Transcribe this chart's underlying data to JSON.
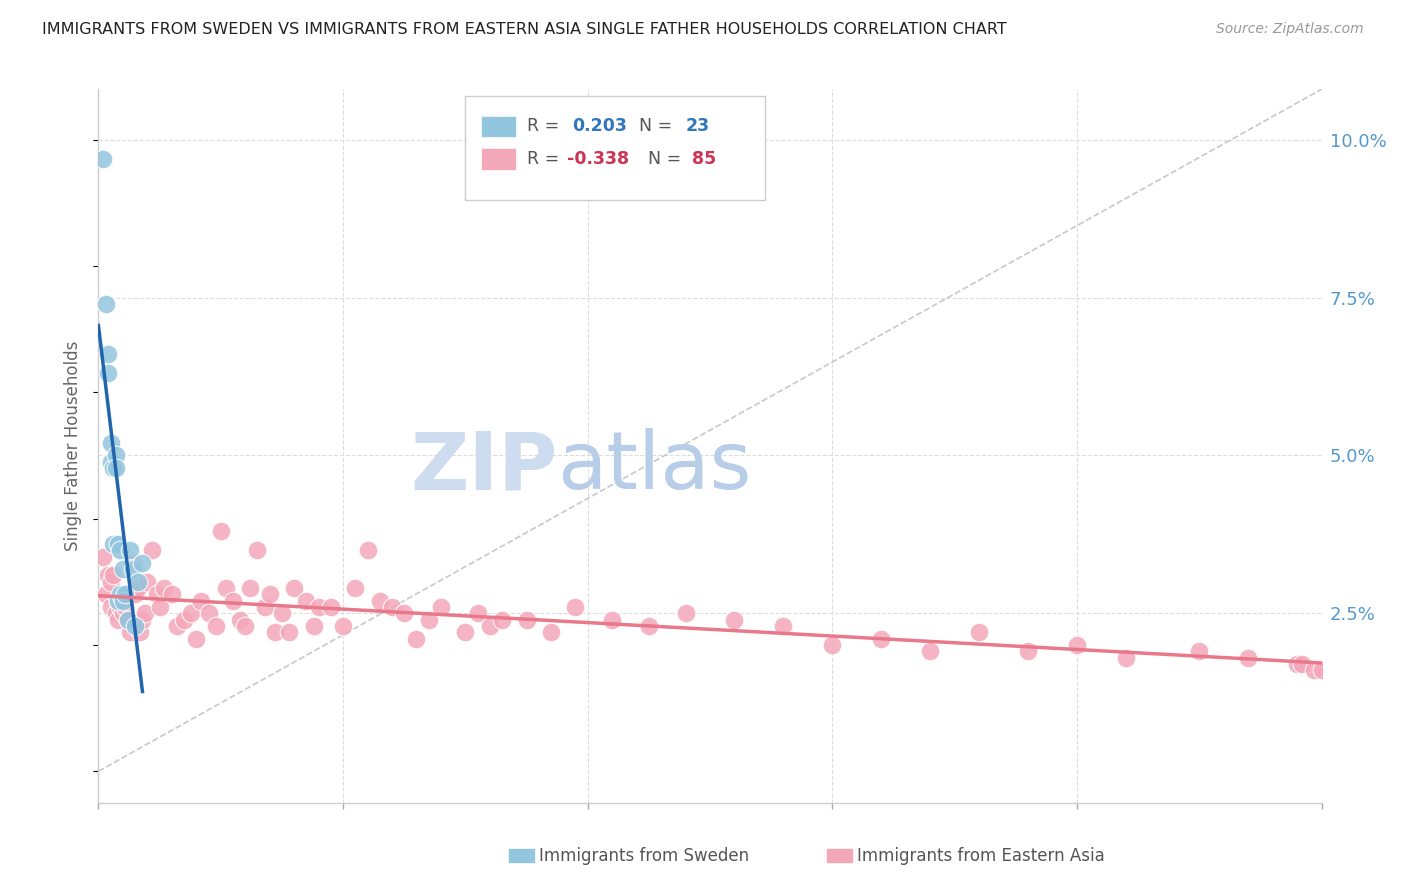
{
  "title": "IMMIGRANTS FROM SWEDEN VS IMMIGRANTS FROM EASTERN ASIA SINGLE FATHER HOUSEHOLDS CORRELATION CHART",
  "source": "Source: ZipAtlas.com",
  "ylabel": "Single Father Households",
  "ytick_labels": [
    "2.5%",
    "5.0%",
    "7.5%",
    "10.0%"
  ],
  "ytick_values": [
    0.025,
    0.05,
    0.075,
    0.1
  ],
  "xmin": 0.0,
  "xmax": 0.5,
  "ymin": -0.005,
  "ymax": 0.108,
  "sweden_color": "#92c5de",
  "eastern_asia_color": "#f4a7b9",
  "sweden_line_color": "#2166ac",
  "eastern_asia_line_color": "#e8788a",
  "dashed_line_color": "#bbbbbb",
  "background_color": "#ffffff",
  "grid_color": "#dddddd",
  "title_color": "#333333",
  "axis_label_color": "#5599cc",
  "watermark_zip_color": "#c8d8f0",
  "watermark_atlas_color": "#b0c8e8",
  "sweden_points_x": [
    0.002,
    0.003,
    0.004,
    0.004,
    0.005,
    0.005,
    0.006,
    0.006,
    0.007,
    0.007,
    0.008,
    0.008,
    0.009,
    0.009,
    0.01,
    0.01,
    0.011,
    0.012,
    0.013,
    0.014,
    0.015,
    0.016,
    0.018
  ],
  "sweden_points_y": [
    0.097,
    0.074,
    0.066,
    0.063,
    0.052,
    0.049,
    0.048,
    0.036,
    0.05,
    0.048,
    0.036,
    0.027,
    0.035,
    0.028,
    0.032,
    0.027,
    0.028,
    0.024,
    0.035,
    0.032,
    0.023,
    0.03,
    0.033
  ],
  "eastern_asia_points_x": [
    0.002,
    0.003,
    0.004,
    0.005,
    0.005,
    0.006,
    0.007,
    0.008,
    0.008,
    0.009,
    0.01,
    0.01,
    0.011,
    0.012,
    0.013,
    0.014,
    0.015,
    0.016,
    0.017,
    0.018,
    0.019,
    0.02,
    0.022,
    0.024,
    0.025,
    0.027,
    0.03,
    0.032,
    0.035,
    0.038,
    0.04,
    0.042,
    0.045,
    0.048,
    0.05,
    0.052,
    0.055,
    0.058,
    0.06,
    0.062,
    0.065,
    0.068,
    0.07,
    0.072,
    0.075,
    0.078,
    0.08,
    0.085,
    0.088,
    0.09,
    0.095,
    0.1,
    0.105,
    0.11,
    0.115,
    0.12,
    0.125,
    0.13,
    0.135,
    0.14,
    0.15,
    0.155,
    0.16,
    0.165,
    0.175,
    0.185,
    0.195,
    0.21,
    0.225,
    0.24,
    0.26,
    0.28,
    0.3,
    0.32,
    0.34,
    0.36,
    0.38,
    0.4,
    0.42,
    0.45,
    0.47,
    0.49,
    0.492,
    0.497,
    0.5
  ],
  "eastern_asia_points_y": [
    0.034,
    0.028,
    0.031,
    0.03,
    0.026,
    0.031,
    0.025,
    0.027,
    0.024,
    0.026,
    0.025,
    0.028,
    0.026,
    0.024,
    0.022,
    0.033,
    0.028,
    0.029,
    0.022,
    0.024,
    0.025,
    0.03,
    0.035,
    0.028,
    0.026,
    0.029,
    0.028,
    0.023,
    0.024,
    0.025,
    0.021,
    0.027,
    0.025,
    0.023,
    0.038,
    0.029,
    0.027,
    0.024,
    0.023,
    0.029,
    0.035,
    0.026,
    0.028,
    0.022,
    0.025,
    0.022,
    0.029,
    0.027,
    0.023,
    0.026,
    0.026,
    0.023,
    0.029,
    0.035,
    0.027,
    0.026,
    0.025,
    0.021,
    0.024,
    0.026,
    0.022,
    0.025,
    0.023,
    0.024,
    0.024,
    0.022,
    0.026,
    0.024,
    0.023,
    0.025,
    0.024,
    0.023,
    0.02,
    0.021,
    0.019,
    0.022,
    0.019,
    0.02,
    0.018,
    0.019,
    0.018,
    0.017,
    0.017,
    0.016,
    0.016
  ]
}
